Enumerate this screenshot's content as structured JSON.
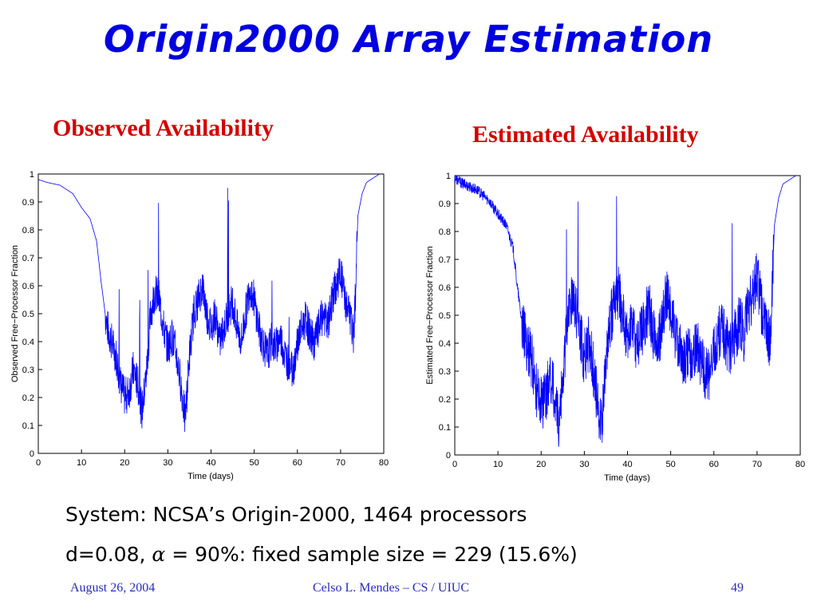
{
  "slide": {
    "title": "Origin2000 Array Estimation",
    "system_text": "System: NCSA’s Origin-2000, 1464 processors",
    "params_prefix": "d=0.08,",
    "params_alpha": "α",
    "params_suffix": "= 90%: fixed sample size = 229 (15.6%)"
  },
  "footer": {
    "date": "August 26, 2004",
    "author": "Celso L. Mendes – CS / UIUC",
    "page": "49"
  },
  "colors": {
    "title": "#0000e0",
    "chart_heading": "#d40000",
    "footer": "#2a2ab8",
    "series_line": "#0000ff",
    "plateau_line": "#6a6aa8"
  },
  "chart_data": [
    {
      "type": "line",
      "heading": "Observed Availability",
      "xlabel": "Time (days)",
      "ylabel": "Observed Free−Processor Fraction",
      "xlim": [
        0,
        80
      ],
      "ylim": [
        0,
        1
      ],
      "xticks": [
        "0",
        "10",
        "20",
        "30",
        "40",
        "50",
        "60",
        "70",
        "80"
      ],
      "yticks": [
        "0",
        "0.1",
        "0.2",
        "0.3",
        "0.4",
        "0.5",
        "0.6",
        "0.7",
        "0.8",
        "0.9",
        "1"
      ],
      "grid": false,
      "noise": 0.07,
      "series": [
        {
          "x": [
            0,
            2,
            5,
            8,
            10,
            12,
            13.5,
            14.5,
            15.5,
            16,
            17,
            18,
            19,
            20,
            21,
            22,
            23,
            24,
            25,
            26,
            27,
            28,
            29,
            30,
            31,
            32,
            33,
            34,
            35,
            36,
            37,
            38,
            39,
            40,
            41,
            42,
            43,
            44,
            45,
            46,
            47,
            48,
            49,
            50,
            51,
            52,
            53,
            54,
            55,
            56,
            57,
            58,
            59,
            60,
            61,
            62,
            63,
            64,
            65,
            66,
            67,
            68,
            69,
            70,
            71,
            72,
            73,
            73.5,
            74,
            75,
            76,
            78,
            79
          ],
          "y": [
            0.98,
            0.97,
            0.96,
            0.93,
            0.88,
            0.84,
            0.76,
            0.62,
            0.5,
            0.45,
            0.4,
            0.35,
            0.25,
            0.2,
            0.22,
            0.3,
            0.25,
            0.15,
            0.28,
            0.5,
            0.58,
            0.55,
            0.45,
            0.38,
            0.42,
            0.35,
            0.25,
            0.12,
            0.35,
            0.5,
            0.55,
            0.6,
            0.5,
            0.45,
            0.5,
            0.4,
            0.45,
            0.5,
            0.55,
            0.45,
            0.4,
            0.5,
            0.6,
            0.55,
            0.45,
            0.4,
            0.35,
            0.4,
            0.38,
            0.42,
            0.36,
            0.32,
            0.3,
            0.4,
            0.45,
            0.48,
            0.42,
            0.4,
            0.45,
            0.5,
            0.45,
            0.55,
            0.6,
            0.65,
            0.55,
            0.5,
            0.42,
            0.6,
            0.85,
            0.93,
            0.97,
            0.99,
            1.0
          ]
        }
      ]
    },
    {
      "type": "line",
      "heading": "Estimated Availability",
      "xlabel": "Time (days)",
      "ylabel": "Estimated Free−Processor Fraction",
      "xlim": [
        0,
        80
      ],
      "ylim": [
        0,
        1
      ],
      "xticks": [
        "0",
        "10",
        "20",
        "30",
        "40",
        "50",
        "60",
        "70",
        "80"
      ],
      "yticks": [
        "0",
        "0.1",
        "0.2",
        "0.3",
        "0.4",
        "0.5",
        "0.6",
        "0.7",
        "0.8",
        "0.9",
        "1"
      ],
      "grid": false,
      "noise": 0.1,
      "series": [
        {
          "x": [
            0,
            2,
            5,
            8,
            10,
            12,
            13.5,
            14.5,
            15.5,
            16,
            17,
            18,
            19,
            20,
            21,
            22,
            23,
            24,
            25,
            26,
            27,
            28,
            29,
            30,
            31,
            32,
            33,
            34,
            35,
            36,
            37,
            38,
            39,
            40,
            41,
            42,
            43,
            44,
            45,
            46,
            47,
            48,
            49,
            50,
            51,
            52,
            53,
            54,
            55,
            56,
            57,
            58,
            59,
            60,
            61,
            62,
            63,
            64,
            65,
            66,
            67,
            68,
            69,
            70,
            71,
            72,
            73,
            73.5,
            74,
            75,
            76,
            78,
            79
          ],
          "y": [
            0.99,
            0.97,
            0.95,
            0.91,
            0.86,
            0.82,
            0.74,
            0.6,
            0.48,
            0.43,
            0.38,
            0.33,
            0.22,
            0.18,
            0.2,
            0.28,
            0.22,
            0.12,
            0.25,
            0.48,
            0.56,
            0.53,
            0.43,
            0.35,
            0.4,
            0.32,
            0.2,
            0.1,
            0.32,
            0.48,
            0.53,
            0.58,
            0.48,
            0.43,
            0.48,
            0.38,
            0.43,
            0.48,
            0.53,
            0.43,
            0.38,
            0.48,
            0.58,
            0.53,
            0.43,
            0.38,
            0.33,
            0.38,
            0.35,
            0.4,
            0.33,
            0.3,
            0.28,
            0.38,
            0.43,
            0.46,
            0.4,
            0.38,
            0.43,
            0.48,
            0.43,
            0.53,
            0.58,
            0.63,
            0.53,
            0.48,
            0.4,
            0.58,
            0.82,
            0.92,
            0.97,
            0.99,
            1.0
          ]
        }
      ]
    }
  ]
}
